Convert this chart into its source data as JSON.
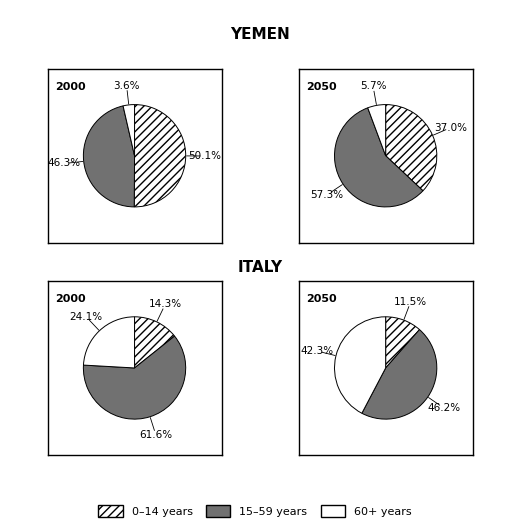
{
  "title_yemen": "YEMEN",
  "title_italy": "ITALY",
  "yemen_2000": {
    "label": "2000",
    "values": [
      50.1,
      46.3,
      3.6
    ],
    "pct_labels": [
      "50.1%",
      "46.3%",
      "3.6%"
    ]
  },
  "yemen_2050": {
    "label": "2050",
    "values": [
      37.0,
      57.3,
      5.7
    ],
    "pct_labels": [
      "37.0%",
      "57.3%",
      "5.7%"
    ]
  },
  "italy_2000": {
    "label": "2000",
    "values": [
      14.3,
      61.6,
      24.1
    ],
    "pct_labels": [
      "14.3%",
      "61.6%",
      "24.1%"
    ]
  },
  "italy_2050": {
    "label": "2050",
    "values": [
      11.5,
      46.2,
      42.3
    ],
    "pct_labels": [
      "11.5%",
      "46.2%",
      "42.3%"
    ]
  },
  "legend_labels": [
    "0–14 years",
    "15–59 years",
    "60+ years"
  ],
  "background_color": "#ffffff",
  "dark_color": "#717171",
  "hatch_color": "#ffffff",
  "white_color": "#ffffff"
}
